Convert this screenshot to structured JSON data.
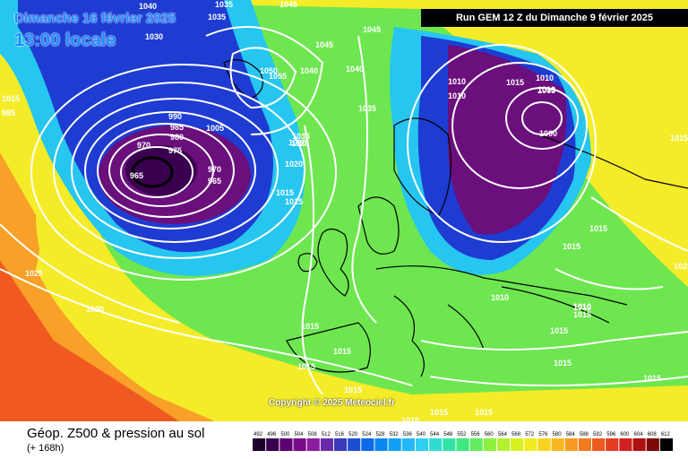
{
  "header": {
    "date_line": "Dimanche 16 février 2025",
    "time_line": "13:00 locale",
    "run_banner": "Run GEM 12 Z du Dimanche 9 février 2025"
  },
  "footer": {
    "title": "Géop. Z500 & pression au sol",
    "subtitle": "(+ 168h)",
    "copyright": "Copyright © 2025 Meteociel.fr"
  },
  "pressure_labels": [
    "1040",
    "1035",
    "1035",
    "1030",
    "1045",
    "1045",
    "1040",
    "1045",
    "1050",
    "1055",
    "1040",
    "1035",
    "1015",
    "985",
    "990",
    "985",
    "980",
    "975",
    "970",
    "965",
    "970",
    "965",
    "1005",
    "1035",
    "1030",
    "1025",
    "1020",
    "1015",
    "1015",
    "1010",
    "1010",
    "1010",
    "1015",
    "1010",
    "1005",
    "1000",
    "1025",
    "1015",
    "1015",
    "1010",
    "1015",
    "1025",
    "1020",
    "1015",
    "1015",
    "1015",
    "1015",
    "1010",
    "1015",
    "1015",
    "1015",
    "1015",
    "1010",
    "1015",
    "1015",
    "1010"
  ],
  "scale": {
    "ticks": [
      "492",
      "496",
      "500",
      "504",
      "508",
      "512",
      "516",
      "520",
      "524",
      "528",
      "532",
      "536",
      "540",
      "544",
      "548",
      "552",
      "556",
      "560",
      "564",
      "568",
      "572",
      "576",
      "580",
      "584",
      "588",
      "592",
      "596",
      "600",
      "604",
      "608",
      "612"
    ],
    "colors": [
      "#1e002a",
      "#3a0050",
      "#5a0070",
      "#7a0a88",
      "#8a1c9e",
      "#6a2aa8",
      "#3a3aba",
      "#1e4ed0",
      "#0a6ae6",
      "#0a86f2",
      "#10a0f8",
      "#22b8fa",
      "#30cef0",
      "#30dcd0",
      "#30e4a8",
      "#40e880",
      "#60ee60",
      "#8cf040",
      "#b4f030",
      "#d8f020",
      "#f0ec20",
      "#f8d420",
      "#fab820",
      "#f89a20",
      "#f47a20",
      "#ee5a20",
      "#e43c20",
      "#d02020",
      "#b01010",
      "#7c0808",
      "#000000"
    ],
    "active_colors": {
      "low": "#6a0f7c",
      "cold": "#1e3cd2",
      "mid": "#26c6f0",
      "warm": "#6ee650",
      "hot": "#f4ec28",
      "hotter": "#f8a028",
      "hottest": "#f05a20"
    }
  }
}
